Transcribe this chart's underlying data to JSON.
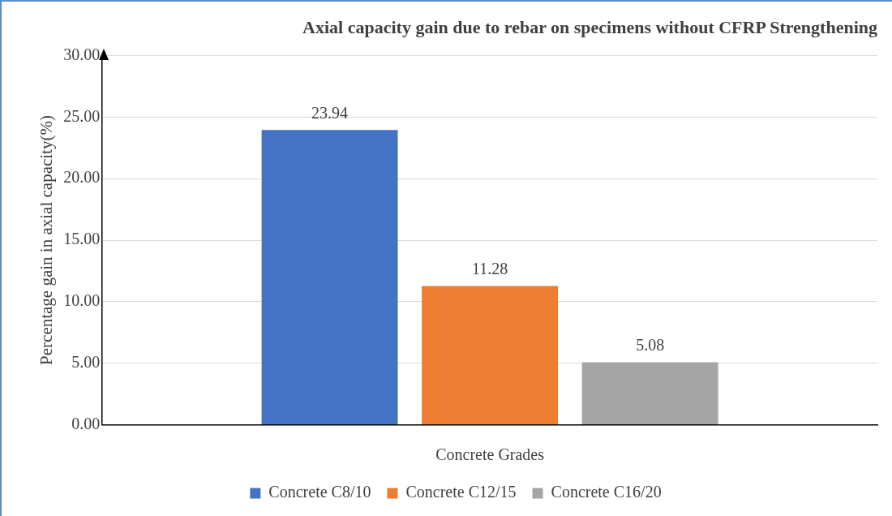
{
  "chart_data": {
    "type": "bar",
    "title": "Axial capacity gain due to rebar on specimens without CFRP Strengthening",
    "xlabel": "Concrete Grades",
    "ylabel": "Percentage gain in axial capacity(%)",
    "categories": [
      null
    ],
    "series": [
      {
        "name": "Concrete C8/10",
        "color": "#4472c4",
        "values": [
          23.94
        ]
      },
      {
        "name": "Concrete C12/15",
        "color": "#ed7d31",
        "values": [
          11.28
        ]
      },
      {
        "name": "Concrete C16/20",
        "color": "#a5a5a5",
        "values": [
          5.08
        ]
      }
    ],
    "ylim": [
      0,
      30
    ],
    "yticks": [
      {
        "value": 0,
        "label": "0.00"
      },
      {
        "value": 5,
        "label": "5.00"
      },
      {
        "value": 10,
        "label": "10.00"
      },
      {
        "value": 15,
        "label": "15.00"
      },
      {
        "value": 20,
        "label": "20.00"
      },
      {
        "value": 25,
        "label": "25.00"
      },
      {
        "value": 30,
        "label": "30.00"
      }
    ],
    "grid": "y",
    "legend": "bottom",
    "data_labels": true
  }
}
